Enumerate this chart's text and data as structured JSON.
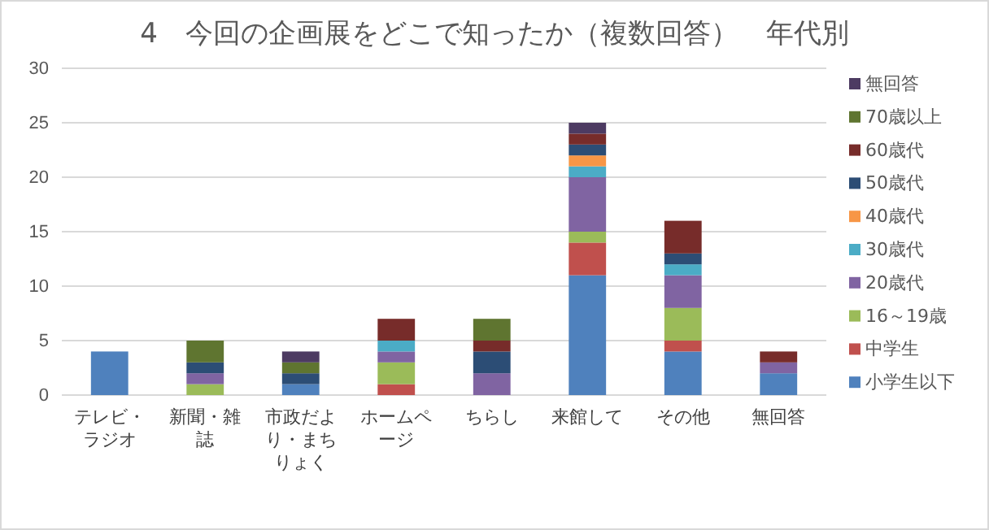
{
  "chart_data": {
    "type": "bar",
    "stacked": true,
    "title": "4　今回の企画展をどこで知ったか（複数回答）　年代別",
    "categories": [
      "テレビ・ラジオ",
      "新聞・雑誌",
      "市政だより・まちりょく",
      "ホームページ",
      "ちらし",
      "来館して",
      "その他",
      "無回答"
    ],
    "ylim": [
      0,
      30
    ],
    "yticks": [
      0,
      5,
      10,
      15,
      20,
      25,
      30
    ],
    "grid": "y",
    "legend": "right",
    "series": [
      {
        "name": "小学生以下",
        "color": "#4f81bd",
        "values": [
          4,
          0,
          1,
          0,
          0,
          11,
          4,
          2
        ]
      },
      {
        "name": "中学生",
        "color": "#c0504d",
        "values": [
          0,
          0,
          0,
          1,
          0,
          3,
          1,
          0
        ]
      },
      {
        "name": "16～19歳",
        "color": "#9bbb59",
        "values": [
          0,
          1,
          0,
          2,
          0,
          1,
          3,
          0
        ]
      },
      {
        "name": "20歳代",
        "color": "#8064a2",
        "values": [
          0,
          1,
          0,
          1,
          2,
          5,
          3,
          1
        ]
      },
      {
        "name": "30歳代",
        "color": "#4bacc6",
        "values": [
          0,
          0,
          0,
          1,
          0,
          1,
          1,
          0
        ]
      },
      {
        "name": "40歳代",
        "color": "#f79646",
        "values": [
          0,
          0,
          0,
          0,
          0,
          1,
          0,
          0
        ]
      },
      {
        "name": "50歳代",
        "color": "#2c4d75",
        "values": [
          0,
          1,
          1,
          0,
          2,
          1,
          1,
          0
        ]
      },
      {
        "name": "60歳代",
        "color": "#772c2a",
        "values": [
          0,
          0,
          0,
          2,
          1,
          1,
          3,
          1
        ]
      },
      {
        "name": "70歳以上",
        "color": "#5f7530",
        "values": [
          0,
          2,
          1,
          0,
          2,
          0,
          0,
          0
        ]
      },
      {
        "name": "無回答",
        "color": "#4d3b62",
        "values": [
          0,
          0,
          1,
          0,
          0,
          1,
          0,
          0
        ]
      }
    ]
  }
}
